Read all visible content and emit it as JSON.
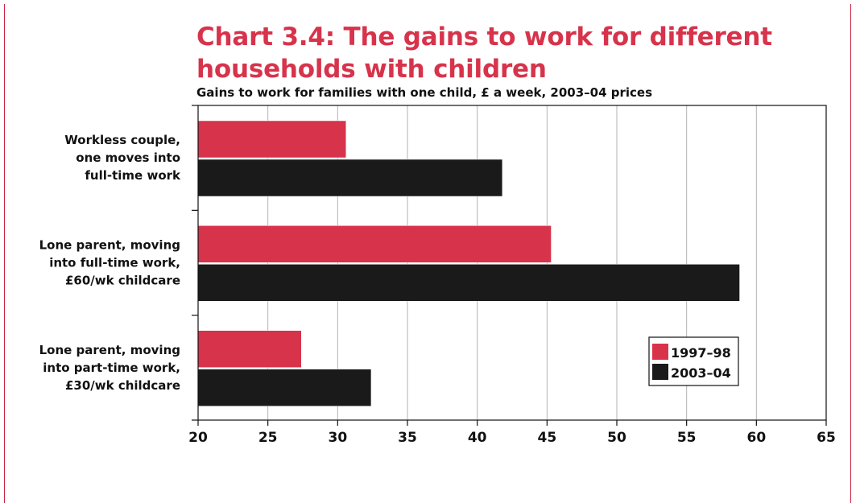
{
  "chart_data": {
    "type": "bar",
    "orientation": "horizontal",
    "title": "Chart 3.4: The gains to work for different households with children",
    "subtitle": "Gains to work for families with one child, £ a week, 2003–04 prices",
    "categories": [
      [
        "Workless couple,",
        "one moves into",
        "full-time work"
      ],
      [
        "Lone parent, moving",
        "into full-time work,",
        "£60/wk childcare"
      ],
      [
        "Lone parent, moving",
        "into part-time work,",
        "£30/wk childcare"
      ]
    ],
    "series": [
      {
        "name": "1997–98",
        "color": "#d7334b",
        "values": [
          30.6,
          45.3,
          27.4
        ]
      },
      {
        "name": "2003–04",
        "color": "#1a1a1a",
        "values": [
          41.8,
          58.8,
          32.4
        ]
      }
    ],
    "xlim": [
      20,
      65
    ],
    "xticks": [
      20,
      25,
      30,
      35,
      40,
      45,
      50,
      55,
      60,
      65
    ],
    "grid": true,
    "legend_position": "bottom-right"
  }
}
